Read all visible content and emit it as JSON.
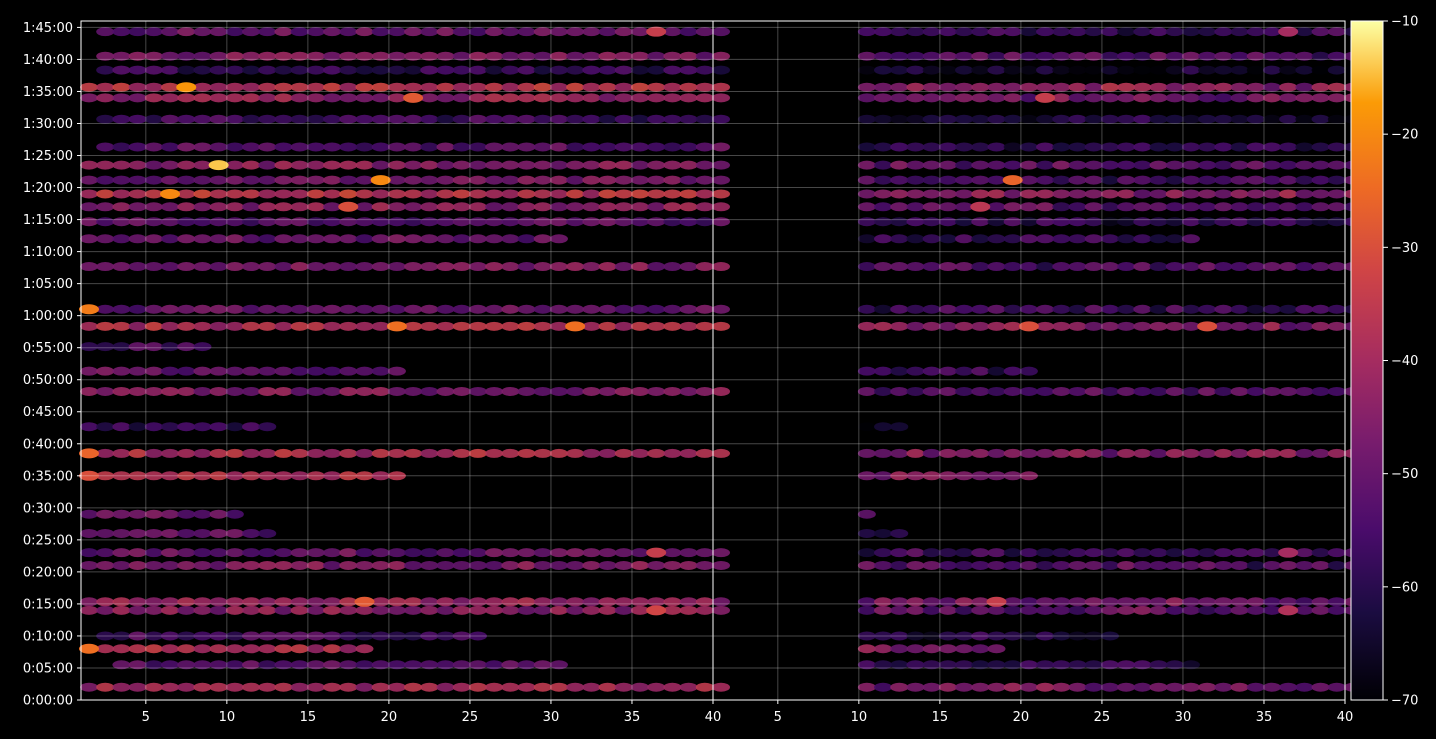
{
  "chart_data": {
    "type": "heatmap",
    "layout": "two side-by-side panels sharing the time axis",
    "colormap": "inferno",
    "background": "#000000",
    "grid": true,
    "panels": [
      {
        "xlim": [
          1,
          40
        ],
        "xticks": [
          "5",
          "10",
          "15",
          "20",
          "25",
          "30",
          "35",
          "40"
        ],
        "activity": "high"
      },
      {
        "xlim": [
          1,
          40
        ],
        "xticks": [
          "5",
          "10",
          "15",
          "20",
          "25",
          "30",
          "35",
          "40"
        ],
        "activity": "lower, mostly columns 10-40"
      }
    ],
    "y_axis": {
      "ylim_seconds": [
        0,
        6360
      ],
      "ticks": [
        "0:00:00",
        "0:05:00",
        "0:10:00",
        "0:15:00",
        "0:20:00",
        "0:25:00",
        "0:30:00",
        "0:35:00",
        "0:40:00",
        "0:45:00",
        "0:50:00",
        "0:55:00",
        "1:00:00",
        "1:05:00",
        "1:10:00",
        "1:15:00",
        "1:20:00",
        "1:25:00",
        "1:30:00",
        "1:35:00",
        "1:40:00",
        "1:45:00"
      ]
    },
    "colorbar": {
      "min": -70,
      "max": -10,
      "ticks": [
        "−10",
        "−20",
        "−30",
        "−40",
        "−50",
        "−60",
        "−70"
      ],
      "values": [
        -10,
        -20,
        -30,
        -40,
        -50,
        -60,
        -70
      ]
    },
    "rows": [
      {
        "t": 120,
        "v": -40,
        "cols": [
          1,
          40
        ]
      },
      {
        "t": 330,
        "v": -52,
        "cols": [
          3,
          30
        ]
      },
      {
        "t": 480,
        "v": -38,
        "cols": [
          1,
          18
        ]
      },
      {
        "t": 600,
        "v": -55,
        "cols": [
          2,
          25
        ]
      },
      {
        "t": 840,
        "v": -44,
        "cols": [
          1,
          40
        ]
      },
      {
        "t": 920,
        "v": -42,
        "cols": [
          1,
          40
        ]
      },
      {
        "t": 1260,
        "v": -46,
        "cols": [
          1,
          40
        ]
      },
      {
        "t": 1380,
        "v": -50,
        "cols": [
          1,
          40
        ]
      },
      {
        "t": 1560,
        "v": -52,
        "cols": [
          1,
          12
        ]
      },
      {
        "t": 1740,
        "v": -50,
        "cols": [
          1,
          10
        ]
      },
      {
        "t": 2100,
        "v": -38,
        "cols": [
          1,
          20
        ]
      },
      {
        "t": 2310,
        "v": -38,
        "cols": [
          1,
          40
        ]
      },
      {
        "t": 2560,
        "v": -58,
        "cols": [
          1,
          12
        ]
      },
      {
        "t": 2890,
        "v": -46,
        "cols": [
          1,
          40
        ]
      },
      {
        "t": 3080,
        "v": -50,
        "cols": [
          1,
          20
        ]
      },
      {
        "t": 3310,
        "v": -54,
        "cols": [
          1,
          8
        ]
      },
      {
        "t": 3500,
        "v": -38,
        "cols": [
          1,
          40
        ]
      },
      {
        "t": 3660,
        "v": -50,
        "cols": [
          1,
          40
        ]
      },
      {
        "t": 4060,
        "v": -46,
        "cols": [
          1,
          40
        ]
      },
      {
        "t": 4320,
        "v": -50,
        "cols": [
          1,
          30
        ]
      },
      {
        "t": 4480,
        "v": -52,
        "cols": [
          1,
          40
        ]
      },
      {
        "t": 4620,
        "v": -44,
        "cols": [
          1,
          40
        ]
      },
      {
        "t": 4740,
        "v": -36,
        "cols": [
          1,
          40
        ]
      },
      {
        "t": 4870,
        "v": -48,
        "cols": [
          1,
          40
        ]
      },
      {
        "t": 5010,
        "v": -44,
        "cols": [
          1,
          40
        ]
      },
      {
        "t": 5180,
        "v": -52,
        "cols": [
          2,
          40
        ]
      },
      {
        "t": 5440,
        "v": -56,
        "cols": [
          2,
          40
        ]
      },
      {
        "t": 5640,
        "v": -42,
        "cols": [
          1,
          40
        ]
      },
      {
        "t": 5740,
        "v": -36,
        "cols": [
          1,
          40
        ]
      },
      {
        "t": 5900,
        "v": -58,
        "cols": [
          2,
          40
        ]
      },
      {
        "t": 6030,
        "v": -46,
        "cols": [
          2,
          40
        ]
      },
      {
        "t": 6260,
        "v": -50,
        "cols": [
          2,
          40
        ]
      }
    ],
    "bright_spots": [
      {
        "t": 5010,
        "x": 9,
        "v": -14
      },
      {
        "t": 4740,
        "x": 6,
        "v": -20
      },
      {
        "t": 4870,
        "x": 19,
        "v": -20
      },
      {
        "t": 5740,
        "x": 7,
        "v": -18
      },
      {
        "t": 5640,
        "x": 21,
        "v": -28
      },
      {
        "t": 3660,
        "x": 1,
        "v": -22
      },
      {
        "t": 3500,
        "x": 20,
        "v": -24
      },
      {
        "t": 3500,
        "x": 31,
        "v": -24
      },
      {
        "t": 2310,
        "x": 1,
        "v": -26
      },
      {
        "t": 2100,
        "x": 1,
        "v": -30
      },
      {
        "t": 480,
        "x": 1,
        "v": -24
      },
      {
        "t": 920,
        "x": 18,
        "v": -28
      },
      {
        "t": 840,
        "x": 36,
        "v": -32
      },
      {
        "t": 6260,
        "x": 36,
        "v": -34
      },
      {
        "t": 4620,
        "x": 17,
        "v": -30
      },
      {
        "t": 1380,
        "x": 36,
        "v": -34
      }
    ]
  }
}
